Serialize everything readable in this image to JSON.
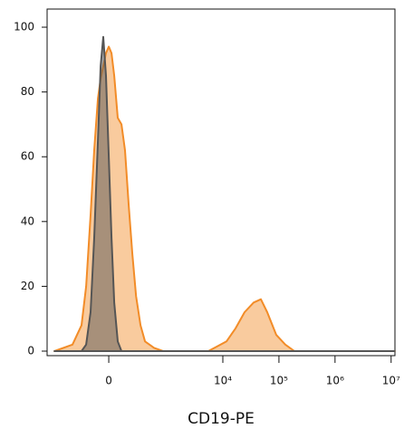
{
  "chart_data": {
    "type": "histogram-overlay",
    "x_title": "CD19-PE",
    "xscale": "biexponential",
    "x": [
      -849,
      -389,
      -253,
      -198,
      -151,
      -117,
      -85,
      -63,
      -42,
      -21,
      0,
      21,
      42,
      70,
      101,
      133,
      169,
      208,
      253,
      315,
      389,
      579,
      849,
      1807,
      5513,
      11618,
      16835,
      24420,
      35430,
      47675,
      61900,
      89725,
      130055,
      188700,
      329300,
      1456000,
      11655000
    ],
    "series": [
      {
        "color": "#f28c28",
        "fill": true,
        "values": [
          0,
          2,
          8,
          20,
          42,
          62,
          78,
          84,
          88,
          92,
          94,
          92,
          85,
          72,
          70,
          62,
          45,
          30,
          17,
          8,
          3,
          1,
          0,
          0,
          0,
          3,
          7,
          12,
          15,
          16,
          12,
          5,
          2,
          0,
          0,
          0,
          0
        ]
      },
      {
        "color": "#555555",
        "fill": true,
        "values": [
          0,
          0,
          0,
          2,
          12,
          35,
          65,
          88,
          97,
          85,
          60,
          35,
          15,
          3,
          0,
          0,
          0,
          0,
          0,
          0,
          0,
          0,
          0,
          0,
          0,
          0,
          0,
          0,
          0,
          0,
          0,
          0,
          0,
          0,
          0,
          0,
          0
        ]
      }
    ],
    "xlim": [
      -1155,
      11700000
    ],
    "xticks": [
      0,
      {
        "value": 10000,
        "label": "10⁴"
      },
      {
        "value": 100000,
        "label": "10⁵"
      },
      {
        "value": 1000000,
        "label": "10⁶"
      },
      {
        "value": 10000000,
        "label": "10⁷"
      }
    ],
    "ylim": [
      -1.4,
      105.6
    ],
    "yticks": [
      0,
      20,
      40,
      60,
      80,
      100
    ]
  }
}
